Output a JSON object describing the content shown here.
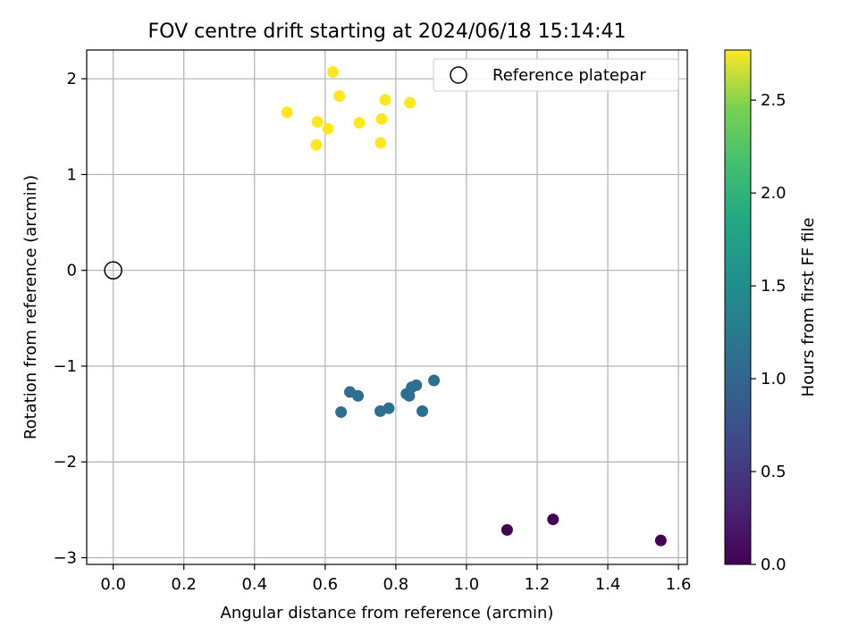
{
  "chart_data": {
    "type": "scatter",
    "title": "FOV centre drift starting at 2024/06/18 15:14:41",
    "xlabel": "Angular distance from reference (arcmin)",
    "ylabel": "Rotation from reference (arcmin)",
    "xlim": [
      -0.075,
      1.625
    ],
    "ylim": [
      -3.07,
      2.3
    ],
    "xticks": [
      0.0,
      0.2,
      0.4,
      0.6,
      0.8,
      1.0,
      1.2,
      1.4,
      1.6
    ],
    "xtick_labels": [
      "0.0",
      "0.2",
      "0.4",
      "0.6",
      "0.8",
      "1.0",
      "1.2",
      "1.4",
      "1.6"
    ],
    "yticks": [
      2,
      1,
      0,
      -1,
      -2,
      -3
    ],
    "ytick_labels": [
      "2",
      "1",
      "0",
      "−1",
      "−2",
      "−3"
    ],
    "grid": true,
    "legend": {
      "location": "upper right",
      "entries": [
        {
          "label": "Reference platepar",
          "marker": "open-circle"
        }
      ]
    },
    "reference_point": {
      "x": 0.0,
      "y": 0.0
    },
    "colorbar": {
      "label": "Hours from first FF file",
      "colormap": "viridis",
      "range": [
        0.0,
        2.77
      ],
      "ticks": [
        0.0,
        0.5,
        1.0,
        1.5,
        2.0,
        2.5
      ],
      "tick_labels": [
        "0.0",
        "0.5",
        "1.0",
        "1.5",
        "2.0",
        "2.5"
      ]
    },
    "points": [
      {
        "x": 1.115,
        "y": -2.71,
        "hours": 0.0
      },
      {
        "x": 1.245,
        "y": -2.6,
        "hours": 0.0
      },
      {
        "x": 1.55,
        "y": -2.82,
        "hours": 0.0
      },
      {
        "x": 0.645,
        "y": -1.48,
        "hours": 1.0
      },
      {
        "x": 0.67,
        "y": -1.27,
        "hours": 1.0
      },
      {
        "x": 0.693,
        "y": -1.31,
        "hours": 1.0
      },
      {
        "x": 0.756,
        "y": -1.47,
        "hours": 1.0
      },
      {
        "x": 0.78,
        "y": -1.44,
        "hours": 1.0
      },
      {
        "x": 0.83,
        "y": -1.29,
        "hours": 1.0
      },
      {
        "x": 0.838,
        "y": -1.31,
        "hours": 1.0
      },
      {
        "x": 0.845,
        "y": -1.22,
        "hours": 1.0
      },
      {
        "x": 0.858,
        "y": -1.2,
        "hours": 1.0
      },
      {
        "x": 0.875,
        "y": -1.47,
        "hours": 1.0
      },
      {
        "x": 0.908,
        "y": -1.15,
        "hours": 1.0
      },
      {
        "x": 0.492,
        "y": 1.65,
        "hours": 2.77
      },
      {
        "x": 0.575,
        "y": 1.31,
        "hours": 2.77
      },
      {
        "x": 0.578,
        "y": 1.55,
        "hours": 2.77
      },
      {
        "x": 0.608,
        "y": 1.48,
        "hours": 2.77
      },
      {
        "x": 0.622,
        "y": 2.07,
        "hours": 2.77
      },
      {
        "x": 0.64,
        "y": 1.82,
        "hours": 2.77
      },
      {
        "x": 0.697,
        "y": 1.54,
        "hours": 2.77
      },
      {
        "x": 0.757,
        "y": 1.33,
        "hours": 2.77
      },
      {
        "x": 0.76,
        "y": 1.58,
        "hours": 2.77
      },
      {
        "x": 0.77,
        "y": 1.78,
        "hours": 2.77
      },
      {
        "x": 0.84,
        "y": 1.75,
        "hours": 2.77
      }
    ]
  }
}
